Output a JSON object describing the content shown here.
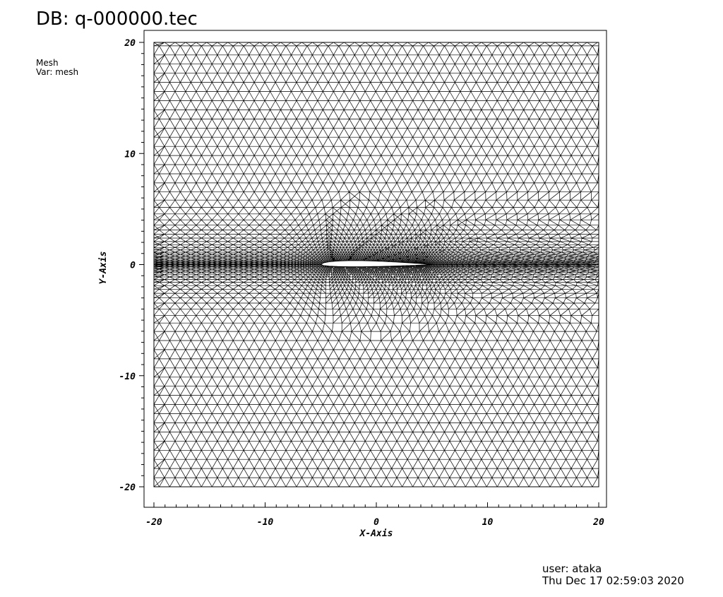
{
  "header": {
    "db_label": "DB: q-000000.tec",
    "plot_type": "Mesh",
    "var_label": "Var: mesh"
  },
  "footer": {
    "user": "user: ataka",
    "timestamp": "Thu Dec 17 02:59:03 2020"
  },
  "chart_data": {
    "type": "mesh",
    "xlabel": "X-Axis",
    "ylabel": "Y-Axis",
    "xlim": [
      -20,
      20
    ],
    "ylim": [
      -20,
      20
    ],
    "xticks": [
      -20,
      -10,
      0,
      10,
      20
    ],
    "yticks": [
      -20,
      -10,
      0,
      10,
      20
    ],
    "xtick_labels": [
      "-20",
      "-10",
      "0",
      "10",
      "20"
    ],
    "ytick_labels": [
      "-20",
      "-10",
      "0",
      "10",
      "20"
    ],
    "minor_tick_step": 1,
    "domain": {
      "xmin": -20,
      "xmax": 20,
      "ymin": -20,
      "ymax": 20
    },
    "airfoil": {
      "leading_edge_x": -5,
      "trailing_edge_x": 5,
      "chord": 10,
      "camber_y": 0
    },
    "mesh_color": "#000000",
    "background_color": "#ffffff"
  }
}
